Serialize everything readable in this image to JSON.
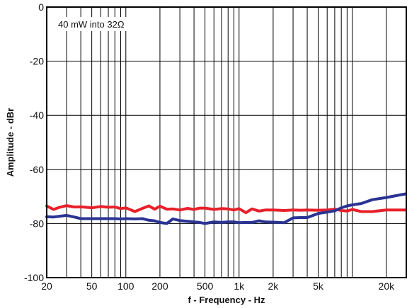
{
  "chart_data": {
    "type": "line",
    "xlabel": "f - Frequency - Hz",
    "ylabel": "Amplitude - dBr",
    "annotation": "40 mW into 32Ω",
    "x_scale": "log",
    "xlim": [
      20,
      30000
    ],
    "ylim": [
      -100,
      0
    ],
    "grid": true,
    "x_ticks": [
      {
        "value": 20,
        "label": "20"
      },
      {
        "value": 50,
        "label": "50"
      },
      {
        "value": 100,
        "label": "100"
      },
      {
        "value": 200,
        "label": "200"
      },
      {
        "value": 500,
        "label": "500"
      },
      {
        "value": 1000,
        "label": "1k"
      },
      {
        "value": 2000,
        "label": "2k"
      },
      {
        "value": 5000,
        "label": "5k"
      },
      {
        "value": 20000,
        "label": "20k"
      }
    ],
    "y_ticks": [
      {
        "value": 0,
        "label": "0"
      },
      {
        "value": -20,
        "label": "-20"
      },
      {
        "value": -40,
        "label": "-40"
      },
      {
        "value": -60,
        "label": "-60"
      },
      {
        "value": -80,
        "label": "-80"
      },
      {
        "value": -100,
        "label": "-100"
      }
    ],
    "series": [
      {
        "color": "#e8202a",
        "x": [
          20,
          23,
          26,
          30,
          35,
          40,
          50,
          60,
          70,
          80,
          90,
          100,
          120,
          140,
          160,
          180,
          200,
          230,
          260,
          300,
          350,
          400,
          450,
          500,
          600,
          700,
          800,
          900,
          1000,
          1150,
          1300,
          1500,
          1700,
          2000,
          2500,
          3000,
          3500,
          4000,
          5000,
          6000,
          7000,
          8000,
          9000,
          10000,
          12000,
          15000,
          20000,
          25000,
          30000
        ],
        "y": [
          -73.5,
          -74.8,
          -74,
          -73.4,
          -73.9,
          -73.8,
          -74.2,
          -73.7,
          -74.0,
          -73.9,
          -74.5,
          -74.2,
          -75.6,
          -74.4,
          -73.5,
          -74.7,
          -73.6,
          -74.7,
          -74.6,
          -75.0,
          -74.4,
          -74.8,
          -74.3,
          -74.3,
          -74.8,
          -74.5,
          -74.6,
          -75.0,
          -74.5,
          -76.0,
          -74.6,
          -75.4,
          -75.0,
          -75.0,
          -75.2,
          -75.0,
          -75.1,
          -75.0,
          -75.1,
          -75.0,
          -74.7,
          -75.2,
          -75.4,
          -74.8,
          -75.6,
          -75.6,
          -75.0,
          -75.0,
          -75.0
        ]
      },
      {
        "color": "#2a3394",
        "x": [
          20,
          23,
          26,
          30,
          35,
          40,
          50,
          60,
          70,
          80,
          90,
          100,
          120,
          140,
          160,
          180,
          200,
          230,
          260,
          300,
          350,
          400,
          450,
          500,
          600,
          700,
          800,
          900,
          1000,
          1150,
          1300,
          1500,
          1700,
          2000,
          2500,
          3000,
          3500,
          4000,
          5000,
          6000,
          7000,
          8000,
          9000,
          10000,
          12000,
          15000,
          20000,
          25000,
          30000
        ],
        "y": [
          -77.5,
          -77.6,
          -77.3,
          -77.0,
          -77.6,
          -78.2,
          -78.2,
          -78.2,
          -78.2,
          -78.2,
          -78.3,
          -78.2,
          -78.3,
          -78.2,
          -78.8,
          -79.0,
          -79.6,
          -80.0,
          -78.3,
          -78.9,
          -79.2,
          -79.4,
          -79.6,
          -80.0,
          -79.4,
          -79.6,
          -79.4,
          -79.4,
          -79.7,
          -79.6,
          -79.6,
          -79.0,
          -79.4,
          -79.5,
          -79.7,
          -77.9,
          -77.8,
          -77.8,
          -76.3,
          -75.8,
          -75.3,
          -74.2,
          -73.5,
          -73.1,
          -72.6,
          -71.2,
          -70.4,
          -69.6,
          -69.0
        ]
      }
    ]
  }
}
